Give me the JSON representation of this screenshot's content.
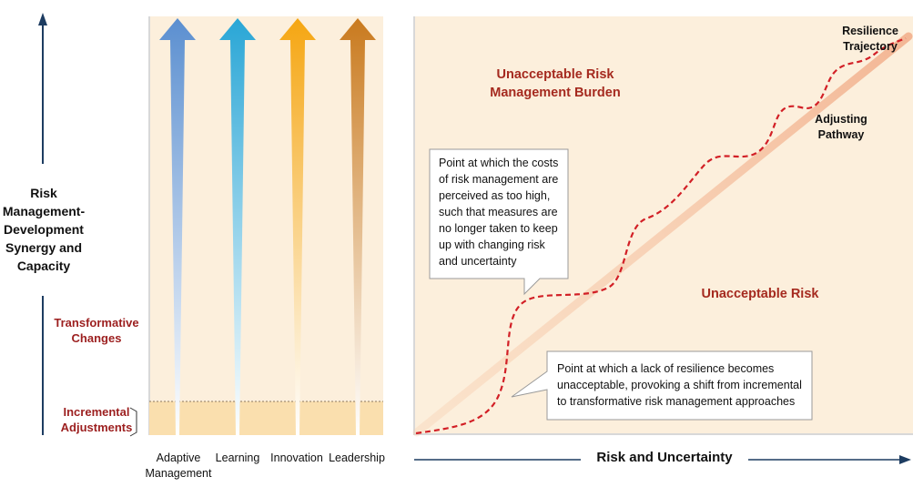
{
  "left_panel": {
    "y_axis_title": [
      "Risk",
      "Management-",
      "Development",
      "Synergy and",
      "Capacity"
    ],
    "transformative_label": [
      "Transformative",
      "Changes"
    ],
    "incremental_label": [
      "Incremental",
      "Adjustments"
    ],
    "columns": [
      {
        "label": [
          "Adaptive",
          "Management"
        ],
        "color": "#5b8fd0"
      },
      {
        "label": [
          "Learning"
        ],
        "color": "#29a6d6"
      },
      {
        "label": [
          "Innovation"
        ],
        "color": "#f5a612"
      },
      {
        "label": [
          "Leadership"
        ],
        "color": "#c97a1e"
      }
    ]
  },
  "right_panel": {
    "top_right_label": [
      "Resilience",
      "Trajectory"
    ],
    "adjusting_label": [
      "Adjusting",
      "Pathway"
    ],
    "region_top": [
      "Unacceptable Risk",
      "Management Burden"
    ],
    "region_bottom": "Unacceptable Risk",
    "callout_top": [
      "Point at which the costs",
      "of risk management are",
      "perceived as too high,",
      "such that measures are",
      "no longer taken to keep",
      "up with changing risk",
      "and uncertainty"
    ],
    "callout_bottom": [
      "Point at which a lack of resilience becomes",
      "unacceptable, provoking a shift from incremental",
      "to transformative risk management approaches"
    ],
    "x_axis_title": "Risk and Uncertainty"
  },
  "colors": {
    "panel_bg": "#fcefdc",
    "incremental_band": "#fadfae",
    "axis": "#1d3c61",
    "dashed_path": "#d21f26",
    "label_red": "#9c1f1f"
  }
}
